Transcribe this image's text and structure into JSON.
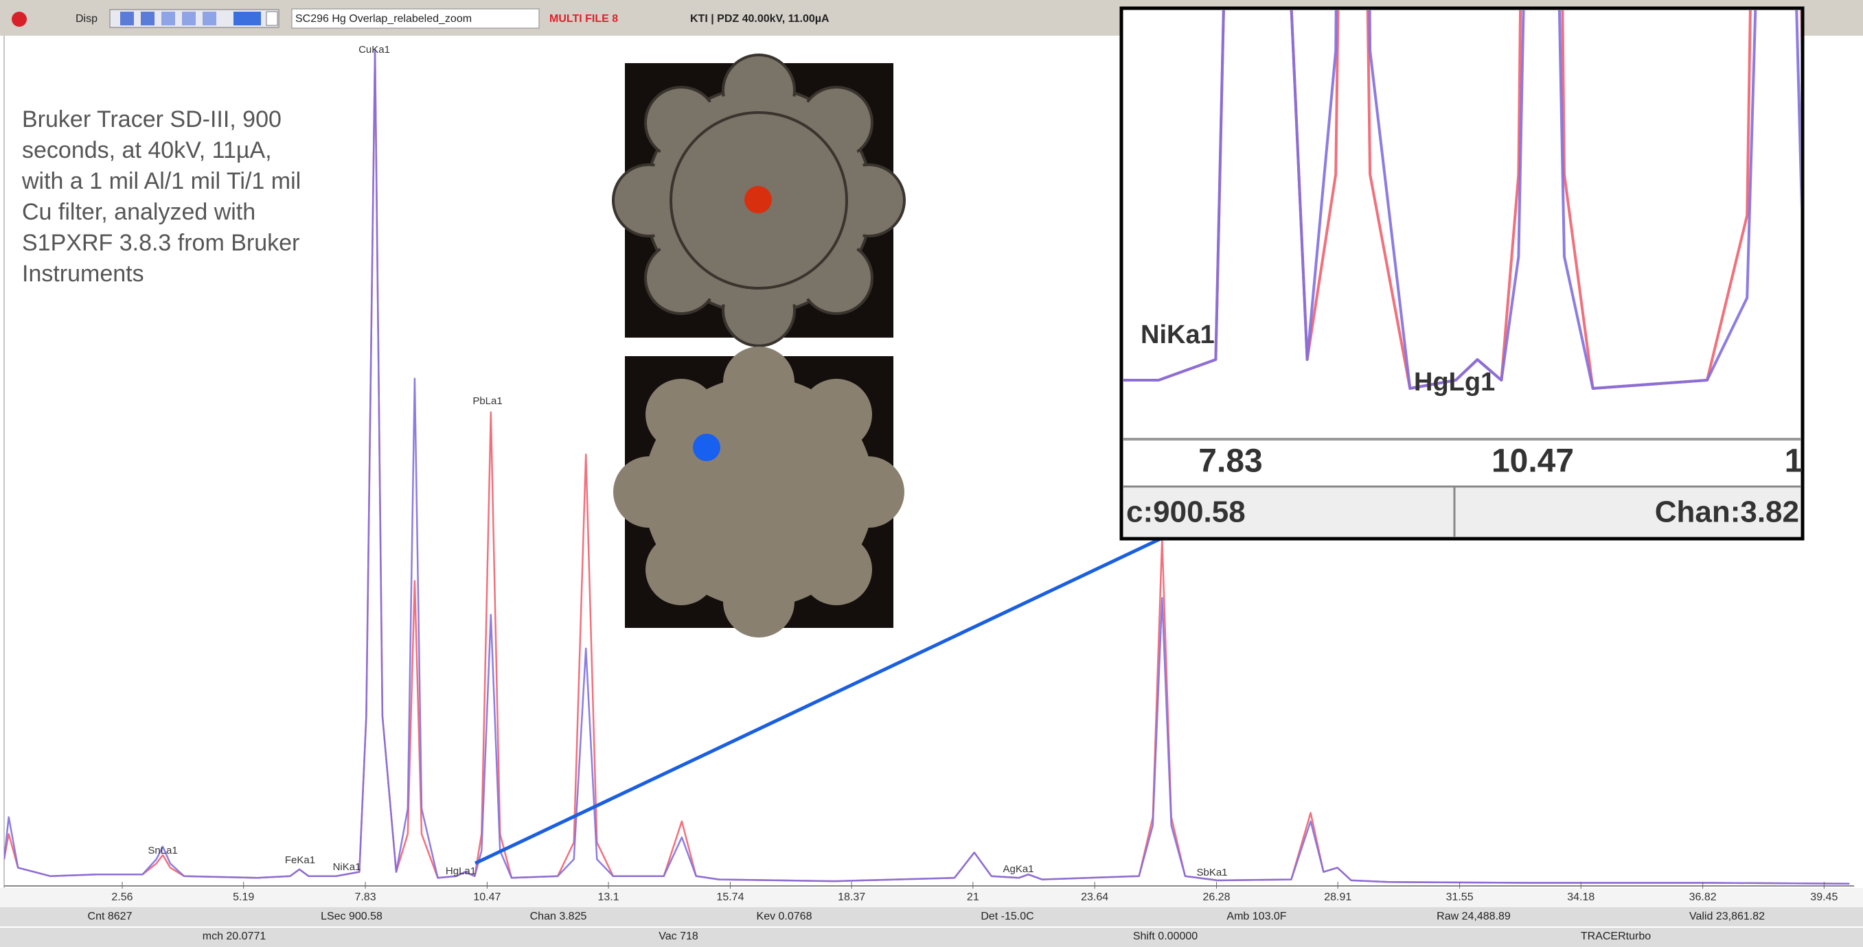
{
  "toolbar": {
    "mode": "Disp",
    "file": "SC296 Hg Overlap_relabeled_zoom",
    "flag": "MULTI FILE 8",
    "info": "KTI | PDZ 40.00kV, 11.00µA"
  },
  "note": [
    "Bruker Tracer SD-III, 900",
    "seconds, at 40kV, 11µA,",
    "with a 1 mil Al/1 mil Ti/1 mil",
    "Cu filter, analyzed with",
    "S1PXRF 3.8.3 from Bruker",
    "Instruments"
  ],
  "chart_data": {
    "type": "line",
    "x": [
      0,
      0.1,
      0.3,
      1,
      2,
      3,
      3.3,
      3.44,
      3.6,
      3.9,
      5.5,
      6.2,
      6.4,
      6.6,
      7.2,
      7.7,
      7.85,
      8.04,
      8.2,
      8.5,
      8.75,
      8.9,
      9.05,
      9.4,
      9.8,
      9.99,
      10.2,
      10.35,
      10.55,
      10.75,
      11,
      12,
      12.35,
      12.61,
      12.85,
      13.2,
      14.3,
      14.69,
      15,
      15.5,
      18,
      20.6,
      21.03,
      21.4,
      22,
      22.2,
      22.5,
      24.6,
      24.9,
      25.1,
      25.3,
      25.6,
      26.3,
      27.9,
      28.32,
      28.6,
      28.9,
      29.2,
      30,
      33,
      37,
      40
    ],
    "series": [
      {
        "color": "#f0606e",
        "values": [
          3,
          6,
          2,
          1,
          1.2,
          1.2,
          2.5,
          3.5,
          2,
          1,
          0.8,
          1,
          1.8,
          1,
          1,
          1.5,
          20,
          99,
          20,
          1.5,
          6,
          36,
          6,
          0.8,
          1,
          1.5,
          1,
          6,
          56,
          6,
          0.8,
          1,
          5,
          51,
          5,
          1,
          1,
          7.5,
          1,
          0.6,
          0.4,
          0.8,
          3.8,
          1,
          0.8,
          1.2,
          0.6,
          1,
          8,
          41,
          8,
          1,
          0.5,
          0.6,
          8.5,
          1.5,
          2,
          0.5,
          0.3,
          0.2,
          0.2,
          0.1
        ]
      },
      {
        "color": "#7f6ee0",
        "values": [
          3,
          8,
          2,
          1,
          1.2,
          1.2,
          3,
          4.5,
          2.5,
          1,
          0.8,
          1,
          1.8,
          1,
          1,
          1.5,
          20,
          99,
          20,
          1.5,
          9,
          60,
          9,
          0.8,
          1,
          1.5,
          1,
          4,
          32,
          4,
          0.8,
          1,
          3,
          28,
          3,
          1,
          1,
          5.6,
          1,
          0.6,
          0.4,
          0.8,
          3.8,
          1,
          0.8,
          1.2,
          0.6,
          1,
          7,
          34,
          7,
          1,
          0.5,
          0.6,
          7.5,
          1.5,
          2,
          0.5,
          0.3,
          0.2,
          0.2,
          0.1
        ]
      }
    ],
    "xlim": [
      0,
      40.1
    ],
    "ylim": [
      0,
      100
    ],
    "xticks": [
      2.56,
      5.19,
      7.83,
      10.47,
      13.1,
      15.74,
      18.37,
      21,
      23.64,
      26.28,
      28.91,
      31.55,
      34.18,
      36.82,
      39.45
    ],
    "annotations": [
      "CuKa1",
      "SnLa1",
      "FeKa1",
      "NiKa1",
      "HgLa1",
      "PbLa1",
      "AgKa1",
      "SbKa1"
    ]
  },
  "status": [
    [
      "Cnt 8627",
      "LSec 900.58",
      "Chan 3.825",
      "Kev 0.0768",
      "Det -15.0C",
      "Amb 103.0F",
      "Raw 24,488.89",
      "Valid 23,861.82"
    ],
    [
      "mch 20.0771",
      "Vac 718",
      "Shift 0.00000",
      "TRACERturbo"
    ]
  ],
  "inset": {
    "labels": [
      "NiKa1",
      "HgLg1"
    ],
    "ticks": [
      "7.83",
      "10.47",
      "1"
    ],
    "status": [
      "c:900.58",
      "Chan:3.82"
    ]
  }
}
